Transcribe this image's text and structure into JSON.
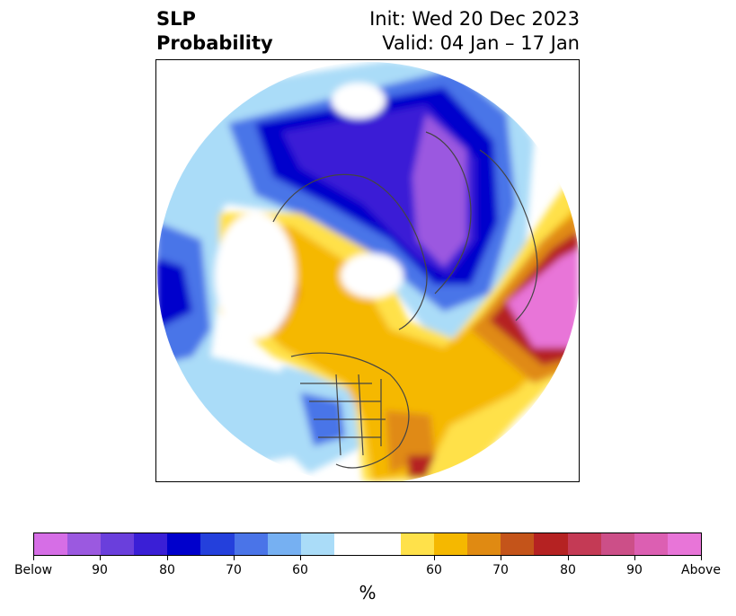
{
  "title": {
    "left_line1": "SLP",
    "left_line2": "Probability",
    "right_line1": "Init: Wed 20 Dec 2023",
    "right_line2": "Valid: 04 Jan – 17 Jan"
  },
  "map": {
    "projection": "north-polar-stereographic",
    "colors": {
      "below_90": "#9b59e0",
      "below_80": "#3a1fd6",
      "below_70": "#0000cc",
      "below_60": "#4a74e8",
      "below_50": "#aadcf8",
      "neutral": "#ffffff",
      "above_50": "#ffe14a",
      "above_60": "#f5b800",
      "above_70": "#e08a12",
      "above_80": "#b52222",
      "above_90": "#e875d8",
      "coastline": "#444444"
    }
  },
  "colorbar": {
    "segments": [
      {
        "color": "#d66ee6"
      },
      {
        "color": "#9b59e0"
      },
      {
        "color": "#6a3fdc"
      },
      {
        "color": "#3a1fd6"
      },
      {
        "color": "#0000cc"
      },
      {
        "color": "#2440dc"
      },
      {
        "color": "#4a74e8"
      },
      {
        "color": "#76b0f2"
      },
      {
        "color": "#aadcf8"
      },
      {
        "color": "#ffffff"
      },
      {
        "color": "#ffe14a"
      },
      {
        "color": "#f5b800"
      },
      {
        "color": "#e08a12"
      },
      {
        "color": "#c4541a"
      },
      {
        "color": "#b52222"
      },
      {
        "color": "#c43a55"
      },
      {
        "color": "#cc4f88"
      },
      {
        "color": "#dc5fb2"
      },
      {
        "color": "#e875d8"
      }
    ],
    "tick_labels": [
      "Below",
      "90",
      "80",
      "70",
      "60",
      "60",
      "70",
      "80",
      "90",
      "Above"
    ],
    "units": "%"
  }
}
